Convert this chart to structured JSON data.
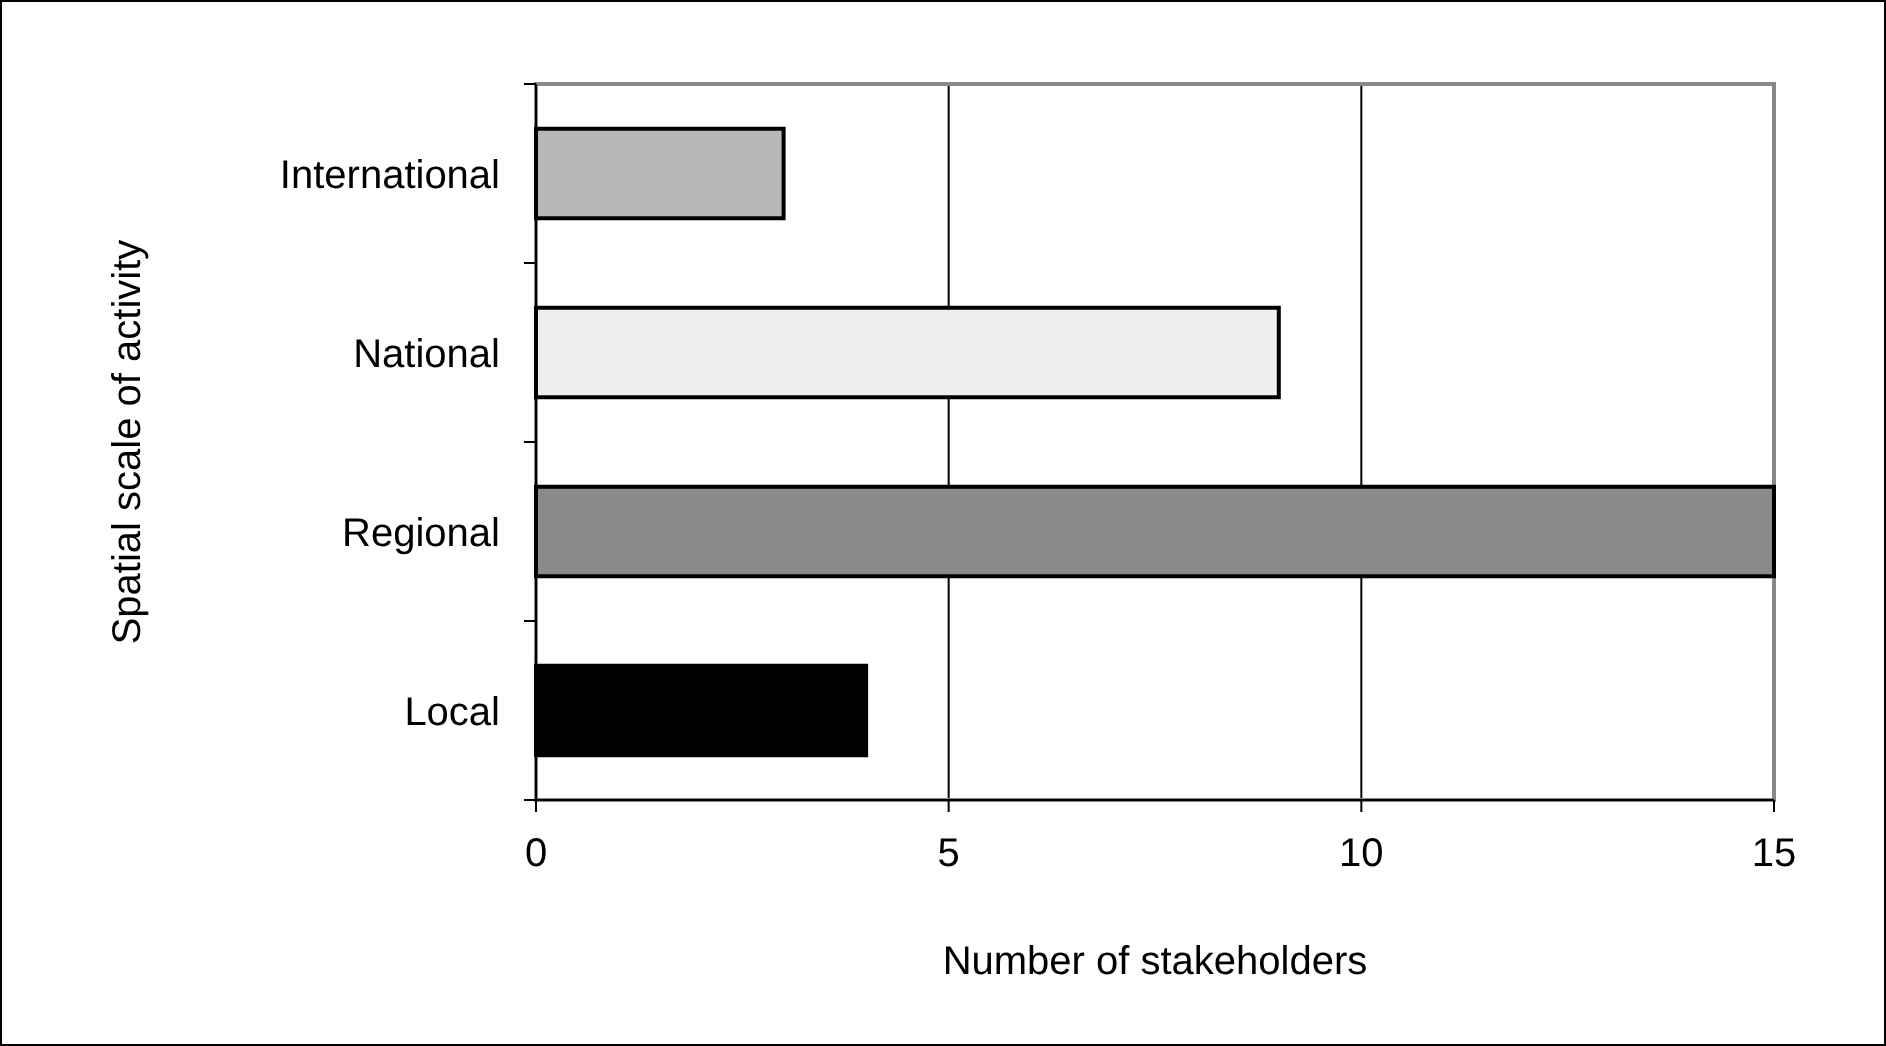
{
  "chart_data": {
    "type": "bar",
    "orientation": "horizontal",
    "categories": [
      "International",
      "National",
      "Regional",
      "Local"
    ],
    "values": [
      3,
      9,
      15,
      4
    ],
    "colors": [
      "#b8b8b8",
      "#eeeeee",
      "#8a8a8a",
      "#000000"
    ],
    "xlim": [
      0,
      15
    ],
    "xticks": [
      0,
      5,
      10,
      15
    ],
    "grid": "x",
    "xlabel": "Number of stakeholders",
    "ylabel": "Spatial scale of activity"
  }
}
